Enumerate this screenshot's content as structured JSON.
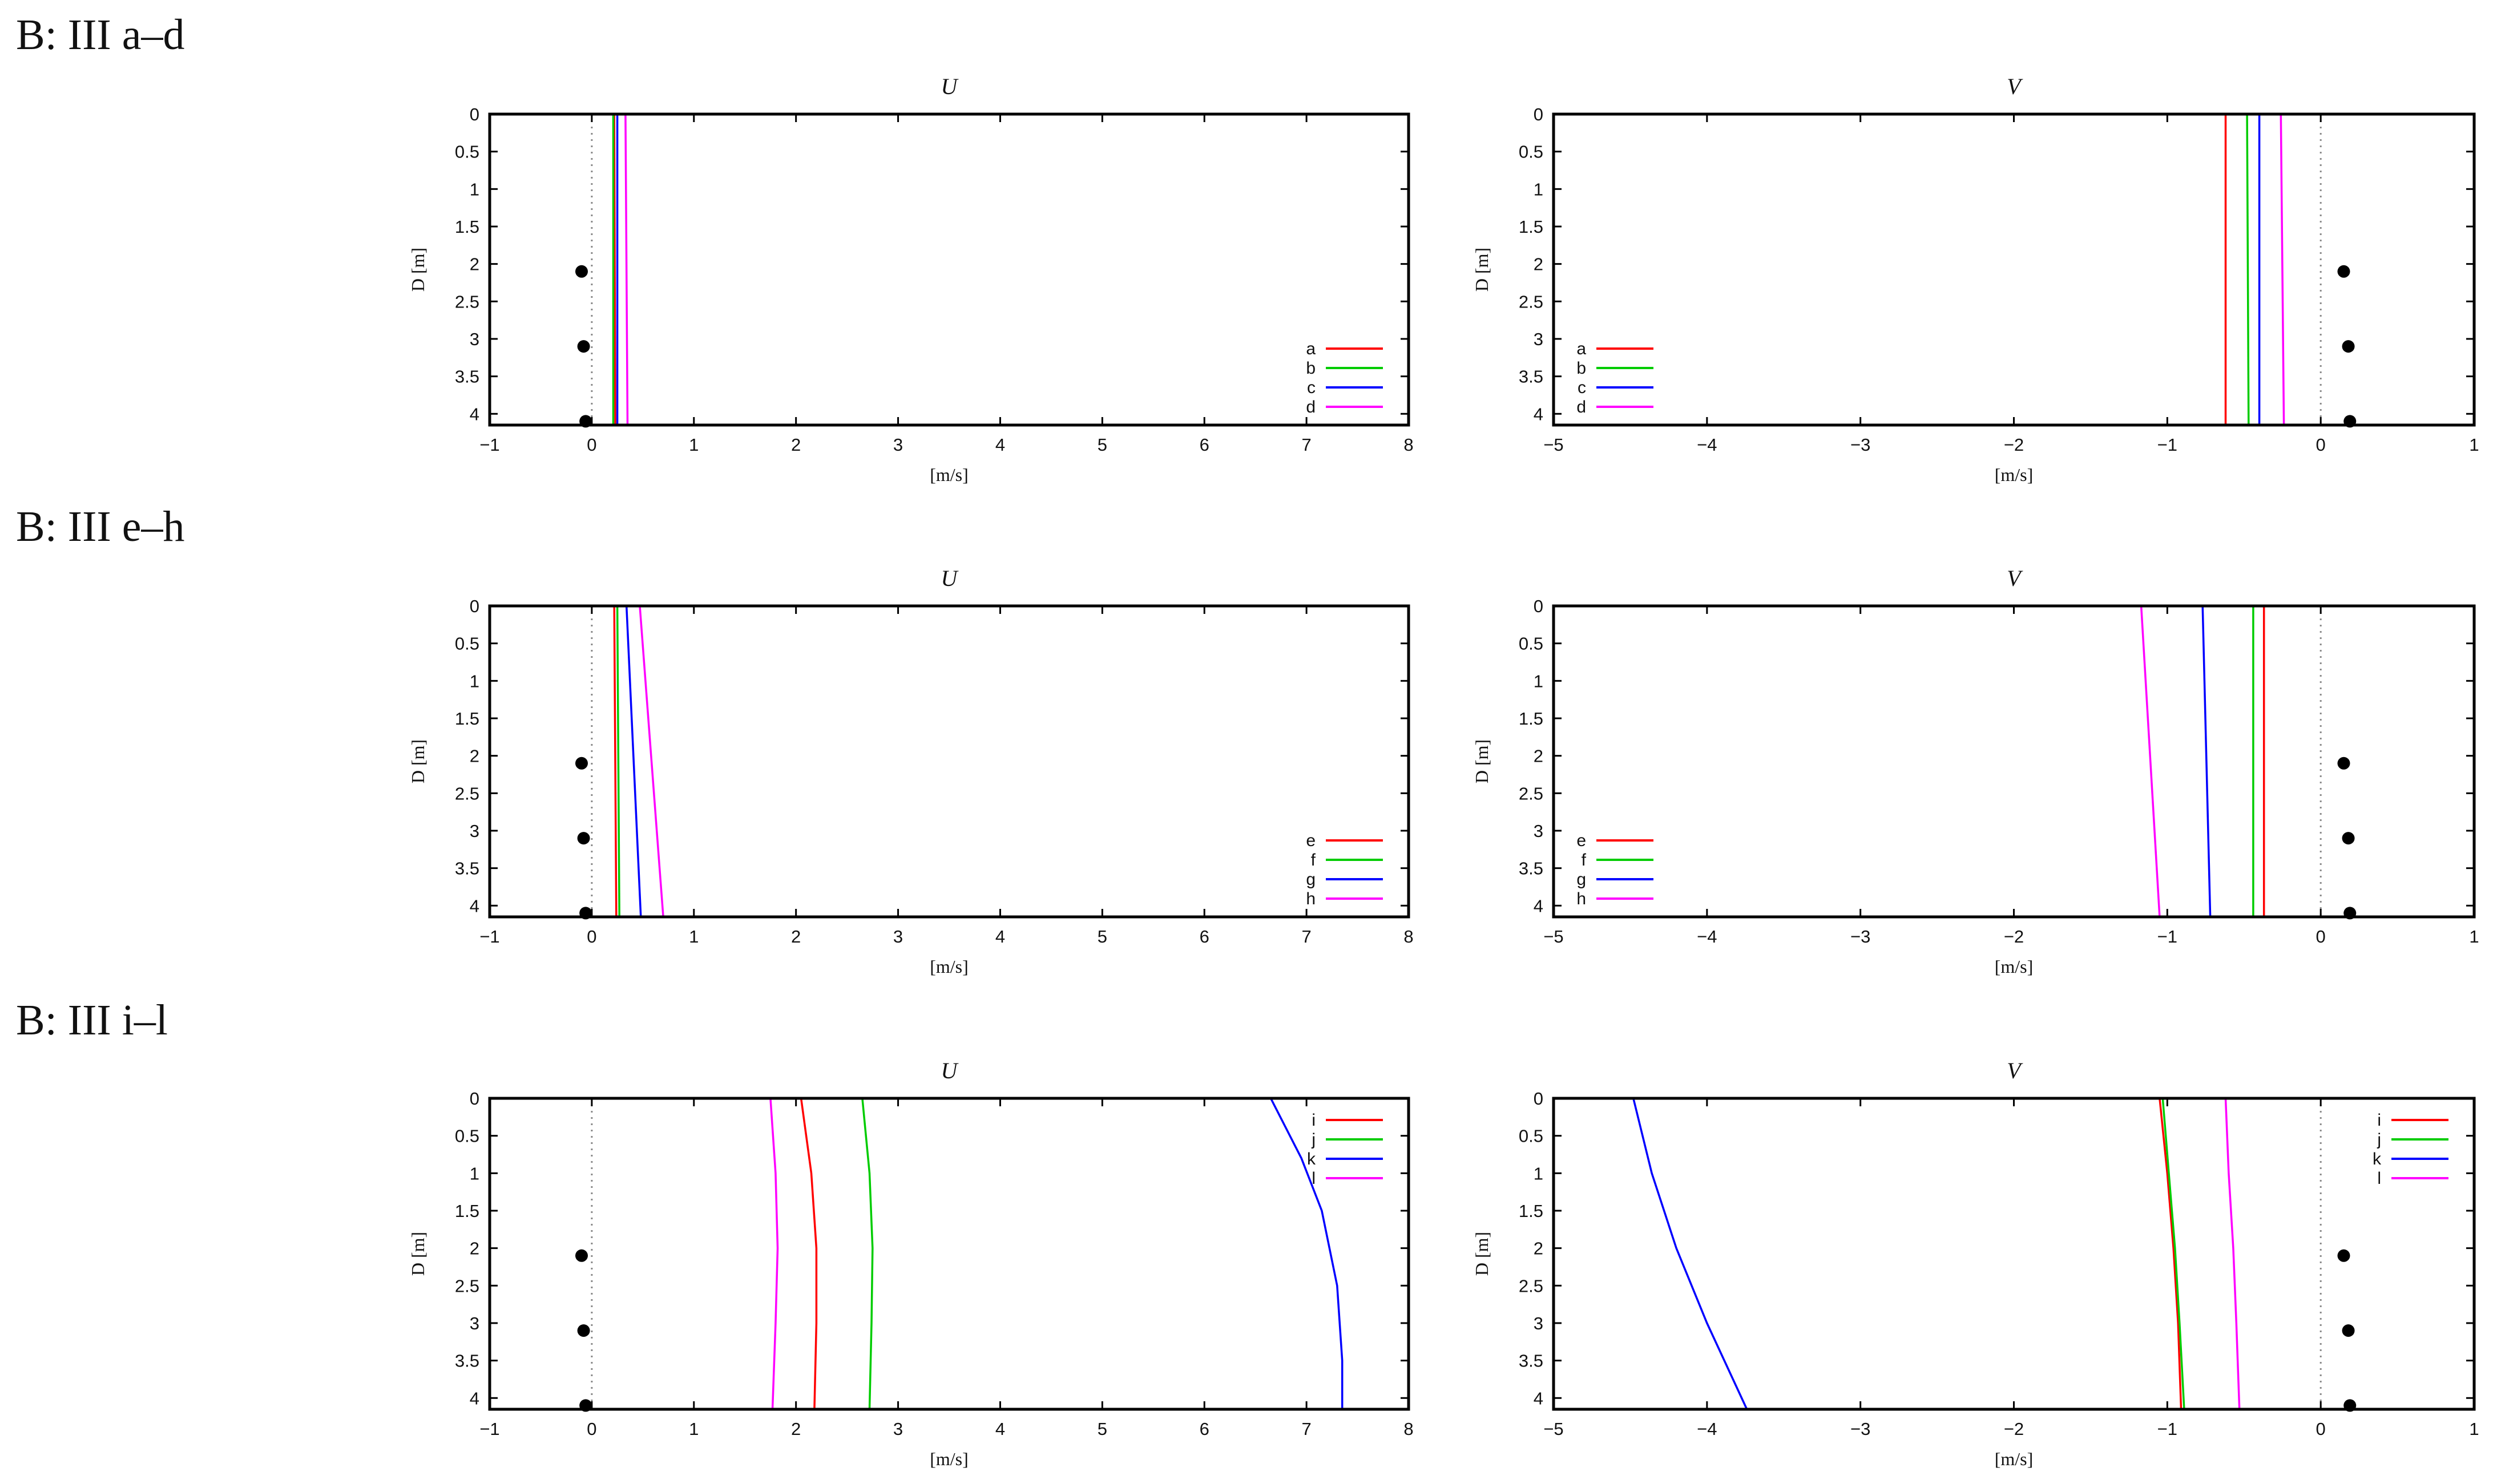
{
  "rows": [
    {
      "title": "B: III a–d"
    },
    {
      "title": "B: III e–h"
    },
    {
      "title": "B: III i–l"
    }
  ],
  "colors": [
    "#ff0000",
    "#00cc00",
    "#0000ff",
    "#ff00ff"
  ],
  "chart_data": [
    {
      "type": "line",
      "title": "U",
      "xlabel": "[m/s]",
      "ylabel": "D [m]",
      "xlim": [
        -1,
        8
      ],
      "ylim": [
        4.15,
        0
      ],
      "xticks": [
        -1,
        0,
        1,
        2,
        3,
        4,
        5,
        6,
        7,
        8
      ],
      "yticks": [
        0,
        0.5,
        1,
        1.5,
        2,
        2.5,
        3,
        3.5,
        4
      ],
      "legend_position": "bottom-right",
      "zero_line": 0,
      "series": [
        {
          "name": "a",
          "points": [
            [
              0.22,
              0
            ],
            [
              0.23,
              4.15
            ]
          ]
        },
        {
          "name": "b",
          "points": [
            [
              0.21,
              0
            ],
            [
              0.21,
              4.15
            ]
          ]
        },
        {
          "name": "c",
          "points": [
            [
              0.25,
              0
            ],
            [
              0.25,
              4.15
            ]
          ]
        },
        {
          "name": "d",
          "points": [
            [
              0.33,
              0
            ],
            [
              0.35,
              4.15
            ]
          ]
        }
      ],
      "markers": [
        {
          "x": -0.1,
          "y": 2.1
        },
        {
          "x": -0.08,
          "y": 3.1
        },
        {
          "x": -0.06,
          "y": 4.1
        }
      ]
    },
    {
      "type": "line",
      "title": "V",
      "xlabel": "[m/s]",
      "ylabel": "D [m]",
      "xlim": [
        -5,
        1
      ],
      "ylim": [
        4.15,
        0
      ],
      "xticks": [
        -5,
        -4,
        -3,
        -2,
        -1,
        0,
        1
      ],
      "yticks": [
        0,
        0.5,
        1,
        1.5,
        2,
        2.5,
        3,
        3.5,
        4
      ],
      "legend_position": "bottom-left",
      "zero_line": 0,
      "series": [
        {
          "name": "a",
          "points": [
            [
              -0.62,
              0
            ],
            [
              -0.62,
              4.15
            ]
          ]
        },
        {
          "name": "b",
          "points": [
            [
              -0.48,
              0
            ],
            [
              -0.47,
              4.15
            ]
          ]
        },
        {
          "name": "c",
          "points": [
            [
              -0.4,
              0
            ],
            [
              -0.4,
              4.15
            ]
          ]
        },
        {
          "name": "d",
          "points": [
            [
              -0.26,
              0
            ],
            [
              -0.24,
              4.15
            ]
          ]
        }
      ],
      "markers": [
        {
          "x": 0.15,
          "y": 2.1
        },
        {
          "x": 0.18,
          "y": 3.1
        },
        {
          "x": 0.19,
          "y": 4.1
        }
      ]
    },
    {
      "type": "line",
      "title": "U",
      "xlabel": "[m/s]",
      "ylabel": "D [m]",
      "xlim": [
        -1,
        8
      ],
      "ylim": [
        4.15,
        0
      ],
      "xticks": [
        -1,
        0,
        1,
        2,
        3,
        4,
        5,
        6,
        7,
        8
      ],
      "yticks": [
        0,
        0.5,
        1,
        1.5,
        2,
        2.5,
        3,
        3.5,
        4
      ],
      "legend_position": "bottom-right",
      "zero_line": 0,
      "series": [
        {
          "name": "e",
          "points": [
            [
              0.22,
              0
            ],
            [
              0.24,
              4.15
            ]
          ]
        },
        {
          "name": "f",
          "points": [
            [
              0.25,
              0
            ],
            [
              0.27,
              4.15
            ]
          ]
        },
        {
          "name": "g",
          "points": [
            [
              0.34,
              0
            ],
            [
              0.48,
              4.15
            ]
          ]
        },
        {
          "name": "h",
          "points": [
            [
              0.47,
              0
            ],
            [
              0.7,
              4.15
            ]
          ]
        }
      ],
      "markers": [
        {
          "x": -0.1,
          "y": 2.1
        },
        {
          "x": -0.08,
          "y": 3.1
        },
        {
          "x": -0.06,
          "y": 4.1
        }
      ]
    },
    {
      "type": "line",
      "title": "V",
      "xlabel": "[m/s]",
      "ylabel": "D [m]",
      "xlim": [
        -5,
        1
      ],
      "ylim": [
        4.15,
        0
      ],
      "xticks": [
        -5,
        -4,
        -3,
        -2,
        -1,
        0,
        1
      ],
      "yticks": [
        0,
        0.5,
        1,
        1.5,
        2,
        2.5,
        3,
        3.5,
        4
      ],
      "legend_position": "bottom-left",
      "zero_line": 0,
      "series": [
        {
          "name": "e",
          "points": [
            [
              -0.37,
              0
            ],
            [
              -0.37,
              4.15
            ]
          ]
        },
        {
          "name": "f",
          "points": [
            [
              -0.44,
              0
            ],
            [
              -0.44,
              4.15
            ]
          ]
        },
        {
          "name": "g",
          "points": [
            [
              -0.77,
              0
            ],
            [
              -0.72,
              4.15
            ]
          ]
        },
        {
          "name": "h",
          "points": [
            [
              -1.17,
              0
            ],
            [
              -1.05,
              4.15
            ]
          ]
        }
      ],
      "markers": [
        {
          "x": 0.15,
          "y": 2.1
        },
        {
          "x": 0.18,
          "y": 3.1
        },
        {
          "x": 0.19,
          "y": 4.1
        }
      ]
    },
    {
      "type": "line",
      "title": "U",
      "xlabel": "[m/s]",
      "ylabel": "D [m]",
      "xlim": [
        -1,
        8
      ],
      "ylim": [
        4.15,
        0
      ],
      "xticks": [
        -1,
        0,
        1,
        2,
        3,
        4,
        5,
        6,
        7,
        8
      ],
      "yticks": [
        0,
        0.5,
        1,
        1.5,
        2,
        2.5,
        3,
        3.5,
        4
      ],
      "legend_position": "top-right",
      "zero_line": 0,
      "series": [
        {
          "name": "i",
          "points": [
            [
              2.05,
              0
            ],
            [
              2.15,
              1
            ],
            [
              2.2,
              2
            ],
            [
              2.2,
              3
            ],
            [
              2.18,
              4.15
            ]
          ]
        },
        {
          "name": "j",
          "points": [
            [
              2.65,
              0
            ],
            [
              2.72,
              1
            ],
            [
              2.75,
              2
            ],
            [
              2.74,
              3
            ],
            [
              2.72,
              4.15
            ]
          ]
        },
        {
          "name": "k",
          "points": [
            [
              6.65,
              0
            ],
            [
              6.95,
              0.8
            ],
            [
              7.15,
              1.5
            ],
            [
              7.3,
              2.5
            ],
            [
              7.35,
              3.5
            ],
            [
              7.35,
              4.15
            ]
          ]
        },
        {
          "name": "l",
          "points": [
            [
              1.75,
              0
            ],
            [
              1.8,
              1
            ],
            [
              1.82,
              2
            ],
            [
              1.8,
              3
            ],
            [
              1.77,
              4.15
            ]
          ]
        }
      ],
      "markers": [
        {
          "x": -0.1,
          "y": 2.1
        },
        {
          "x": -0.08,
          "y": 3.1
        },
        {
          "x": -0.06,
          "y": 4.1
        }
      ]
    },
    {
      "type": "line",
      "title": "V",
      "xlabel": "[m/s]",
      "ylabel": "D [m]",
      "xlim": [
        -5,
        1
      ],
      "ylim": [
        4.15,
        0
      ],
      "xticks": [
        -5,
        -4,
        -3,
        -2,
        -1,
        0,
        1
      ],
      "yticks": [
        0,
        0.5,
        1,
        1.5,
        2,
        2.5,
        3,
        3.5,
        4
      ],
      "legend_position": "top-right",
      "zero_line": 0,
      "series": [
        {
          "name": "i",
          "points": [
            [
              -1.05,
              0
            ],
            [
              -1.0,
              1
            ],
            [
              -0.96,
              2
            ],
            [
              -0.93,
              3
            ],
            [
              -0.91,
              4.15
            ]
          ]
        },
        {
          "name": "j",
          "points": [
            [
              -1.03,
              0
            ],
            [
              -0.99,
              1
            ],
            [
              -0.95,
              2
            ],
            [
              -0.92,
              3
            ],
            [
              -0.89,
              4.15
            ]
          ]
        },
        {
          "name": "k",
          "points": [
            [
              -4.48,
              0
            ],
            [
              -4.36,
              1
            ],
            [
              -4.2,
              2
            ],
            [
              -4.0,
              3
            ],
            [
              -3.74,
              4.15
            ]
          ]
        },
        {
          "name": "l",
          "points": [
            [
              -0.62,
              0
            ],
            [
              -0.6,
              1
            ],
            [
              -0.57,
              2
            ],
            [
              -0.55,
              3
            ],
            [
              -0.53,
              4.15
            ]
          ]
        }
      ],
      "markers": [
        {
          "x": 0.15,
          "y": 2.1
        },
        {
          "x": 0.18,
          "y": 3.1
        },
        {
          "x": 0.19,
          "y": 4.1
        }
      ]
    }
  ]
}
